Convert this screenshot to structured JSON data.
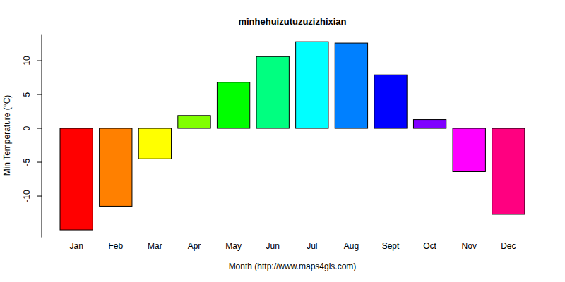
{
  "chart_data": {
    "type": "bar",
    "title": "minhehuizutuzuzizhixian",
    "x_label": "Month (http://www.maps4gis.com)",
    "y_label": "Min Temperature (°C)",
    "categories": [
      "Jan",
      "Feb",
      "Mar",
      "Apr",
      "May",
      "Jun",
      "Jul",
      "Aug",
      "Sept",
      "Oct",
      "Nov",
      "Dec"
    ],
    "values": [
      -15.0,
      -11.5,
      -4.5,
      1.9,
      6.8,
      10.6,
      12.8,
      12.6,
      7.9,
      1.3,
      -6.4,
      -12.7
    ],
    "colors": [
      "#FF0000",
      "#FF8000",
      "#FFFF00",
      "#80FF00",
      "#00FF00",
      "#00FF80",
      "#00FFFF",
      "#0080FF",
      "#0000FF",
      "#8000FF",
      "#FF00FF",
      "#FF0080"
    ],
    "ylim": [
      -16.1,
      13.9
    ],
    "yticks": [
      -10,
      -5,
      0,
      5,
      10
    ],
    "grid": false
  }
}
